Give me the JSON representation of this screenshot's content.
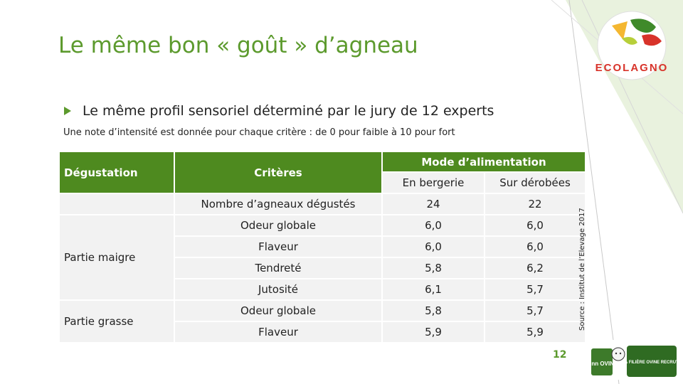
{
  "slide": {
    "title": "Le même bon « goût » d’agneau",
    "bullet": "Le même profil sensoriel déterminé par le jury de 12 experts",
    "note": "Une note d’intensité est donnée pour chaque critère : de 0 pour faible à 10 pour fort",
    "source": "Source : Institut de l’Elevage 2017",
    "page_number": "12"
  },
  "table": {
    "headers": {
      "degustation": "Dégustation",
      "criteres": "Critères",
      "mode": "Mode d’alimentation",
      "bergerie": "En bergerie",
      "derobees": "Sur dérobées"
    },
    "rows": [
      {
        "group": "",
        "critere": "Nombre d’agneaux dégustés",
        "bergerie": "24",
        "derobees": "22"
      },
      {
        "group": "Partie maigre",
        "critere": "Odeur globale",
        "bergerie": "6,0",
        "derobees": "6,0"
      },
      {
        "group": "Partie maigre",
        "critere": "Flaveur",
        "bergerie": "6,0",
        "derobees": "6,0"
      },
      {
        "group": "Partie maigre",
        "critere": "Tendreté",
        "bergerie": "5,8",
        "derobees": "6,2"
      },
      {
        "group": "Partie maigre",
        "critere": "Jutosité",
        "bergerie": "6,1",
        "derobees": "5,7"
      },
      {
        "group": "Partie grasse",
        "critere": "Odeur globale",
        "bergerie": "5,8",
        "derobees": "5,7"
      },
      {
        "group": "Partie grasse",
        "critere": "Flaveur",
        "bergerie": "5,9",
        "derobees": "5,9"
      }
    ]
  },
  "logos": {
    "ecolagno": {
      "text": "ECOLAGNO",
      "icon": "ecolagno-logo"
    },
    "inn_ovin": {
      "text": "inn OVIN",
      "icon": "inn-ovin-logo"
    },
    "filiere": {
      "text": "LA FILIÈRE OVINE RECRUTE",
      "icon": "filiere-recrute-logo"
    }
  },
  "colors": {
    "accent": "#5c9a2d",
    "header": "#4e8a1f",
    "cell": "#f2f2f2"
  }
}
